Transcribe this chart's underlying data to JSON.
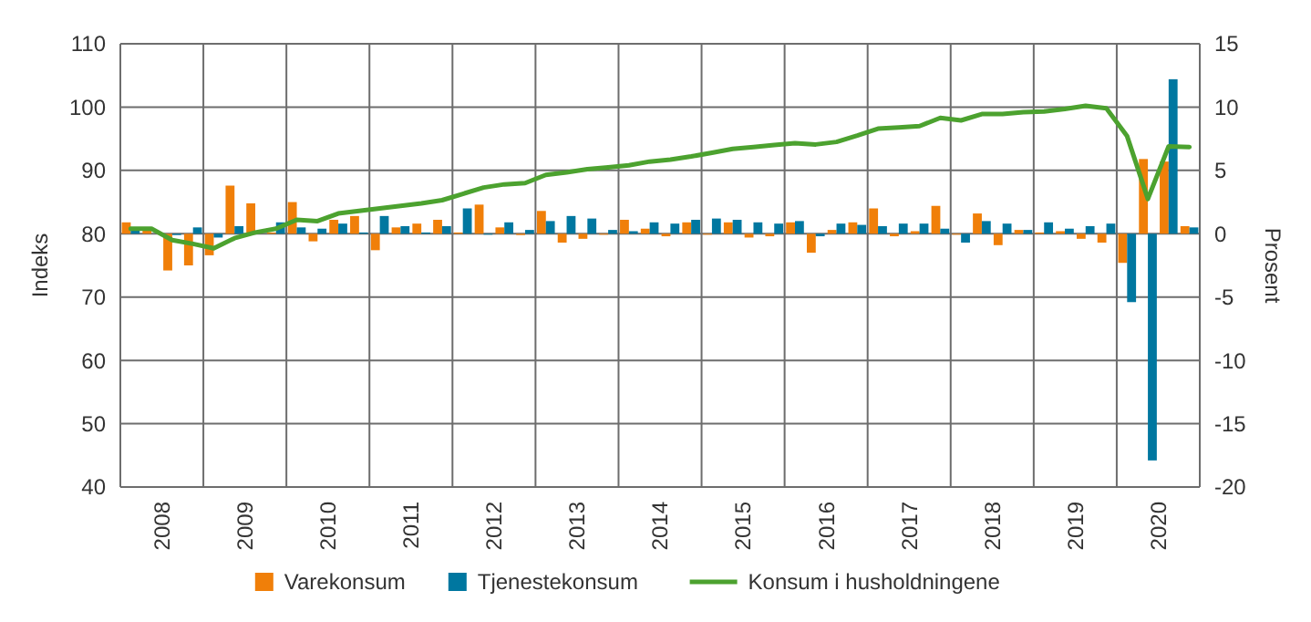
{
  "chart_data": {
    "type": "bar",
    "ylabel": "Indeks",
    "y2label": "Prosent",
    "x": [
      2008.125,
      2008.375,
      2008.625,
      2008.875,
      2009.125,
      2009.375,
      2009.625,
      2009.875,
      2010.125,
      2010.375,
      2010.625,
      2010.875,
      2011.125,
      2011.375,
      2011.625,
      2011.875,
      2012.125,
      2012.375,
      2012.625,
      2012.875,
      2013.125,
      2013.375,
      2013.625,
      2013.875,
      2014.125,
      2014.375,
      2014.625,
      2014.875,
      2015.125,
      2015.375,
      2015.625,
      2015.875,
      2016.125,
      2016.375,
      2016.625,
      2016.875,
      2017.125,
      2017.375,
      2017.625,
      2017.875,
      2018.125,
      2018.375,
      2018.625,
      2018.875,
      2019.125,
      2019.375,
      2019.625,
      2019.875,
      2020.125,
      2020.375,
      2020.625,
      2020.875
    ],
    "xlim": [
      2008,
      2021
    ],
    "xticks": [
      {
        "value": 2008,
        "label": null
      },
      {
        "value": 2008.5,
        "label": "2008"
      },
      {
        "value": 2009,
        "label": null
      },
      {
        "value": 2009.5,
        "label": "2009"
      },
      {
        "value": 2010,
        "label": null
      },
      {
        "value": 2010.5,
        "label": "2010"
      },
      {
        "value": 2011,
        "label": null
      },
      {
        "value": 2011.5,
        "label": "2011"
      },
      {
        "value": 2012,
        "label": null
      },
      {
        "value": 2012.5,
        "label": "2012"
      },
      {
        "value": 2013,
        "label": null
      },
      {
        "value": 2013.5,
        "label": "2013"
      },
      {
        "value": 2014,
        "label": null
      },
      {
        "value": 2014.5,
        "label": "2014"
      },
      {
        "value": 2015,
        "label": null
      },
      {
        "value": 2015.5,
        "label": "2015"
      },
      {
        "value": 2016,
        "label": null
      },
      {
        "value": 2016.5,
        "label": "2016"
      },
      {
        "value": 2017,
        "label": null
      },
      {
        "value": 2017.5,
        "label": "2017"
      },
      {
        "value": 2018,
        "label": null
      },
      {
        "value": 2018.5,
        "label": "2018"
      },
      {
        "value": 2019,
        "label": null
      },
      {
        "value": 2019.5,
        "label": "2019"
      },
      {
        "value": 2020,
        "label": null
      },
      {
        "value": 2020.5,
        "label": "2020"
      },
      {
        "value": 2021,
        "label": null
      }
    ],
    "ylim": [
      40,
      110
    ],
    "yticks": [
      40,
      50,
      60,
      70,
      80,
      90,
      100,
      110
    ],
    "y2lim": [
      -20,
      15
    ],
    "y2ticks": [
      -20,
      -15,
      -10,
      -5,
      0,
      5,
      10,
      15
    ],
    "grid": true,
    "legend": "bottom",
    "series": [
      {
        "name": "Varekonsum",
        "axis": "y2",
        "color": "#f07f09",
        "values": [
          0.9,
          0.3,
          -2.9,
          -2.5,
          -1.7,
          3.8,
          2.4,
          0.1,
          2.5,
          -0.6,
          1.1,
          1.4,
          -1.3,
          0.5,
          0.8,
          1.1,
          0.1,
          2.3,
          0.5,
          -0.1,
          1.8,
          -0.7,
          -0.4,
          0,
          1.1,
          0.4,
          -0.2,
          0.9,
          0,
          0.9,
          -0.3,
          -0.2,
          0.9,
          -1.5,
          0.3,
          0.9,
          2.0,
          -0.2,
          0.2,
          2.2,
          0,
          1.6,
          -0.9,
          0.3,
          0.1,
          0.2,
          -0.4,
          -0.7,
          -2.3,
          5.9,
          5.7,
          0.6
        ]
      },
      {
        "name": "Tjenestekonsum",
        "axis": "y2",
        "color": "#0077a0",
        "values": [
          0.4,
          null,
          -0.1,
          0.5,
          -0.3,
          0.6,
          null,
          0.9,
          0.5,
          0.4,
          0.8,
          0.1,
          1.4,
          0.6,
          0.1,
          0.6,
          2.0,
          0,
          0.9,
          0.3,
          1.0,
          1.4,
          1.2,
          0.3,
          0.2,
          0.9,
          0.8,
          1.1,
          1.2,
          1.1,
          0.9,
          0.8,
          1.0,
          -0.2,
          0.8,
          0.7,
          0.6,
          0.8,
          0.8,
          0.4,
          -0.7,
          1.0,
          0.8,
          0.3,
          0.9,
          0.4,
          0.6,
          0.8,
          -5.4,
          -17.9,
          12.2,
          0.5
        ]
      },
      {
        "name": "Konsum i husholdningene",
        "type": "line",
        "axis": "y",
        "color": "#4ca22f",
        "values": [
          80.8,
          80.8,
          79.0,
          78.4,
          77.7,
          79.3,
          80.2,
          80.8,
          82.2,
          82.0,
          83.2,
          83.6,
          84.0,
          84.4,
          84.8,
          85.3,
          86.3,
          87.3,
          87.8,
          88.0,
          89.3,
          89.7,
          90.2,
          90.5,
          90.8,
          91.4,
          91.7,
          92.2,
          92.8,
          93.4,
          93.7,
          94.0,
          94.3,
          94.1,
          94.5,
          95.5,
          96.6,
          96.8,
          97.0,
          98.3,
          97.9,
          98.9,
          98.9,
          99.2,
          99.3,
          99.7,
          100.2,
          99.8,
          95.4,
          85.5,
          93.8,
          93.7
        ]
      }
    ]
  }
}
